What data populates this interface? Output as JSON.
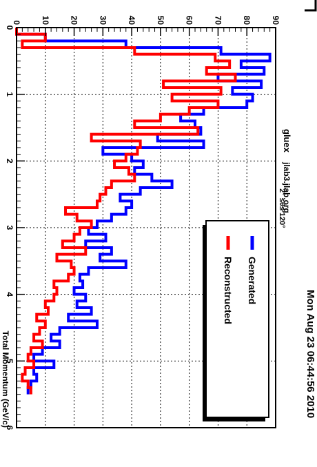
{
  "chart_data": {
    "type": "histogram",
    "title": "2° ≤θ≤ 120°",
    "xlabel": "Total Momentum (GeV/c)",
    "ylabel": "",
    "xlim": [
      0,
      6
    ],
    "ylim": [
      0,
      90
    ],
    "x_ticks": [
      "0",
      "1",
      "2",
      "3",
      "4",
      "5",
      "6"
    ],
    "y_ticks": [
      "0",
      "10",
      "20",
      "30",
      "40",
      "50",
      "60",
      "70",
      "80",
      "90"
    ],
    "grid": true,
    "bin_width": 0.1,
    "bin_edges_start": 0,
    "series": [
      {
        "name": "Generated",
        "color": "#0000ff",
        "values": [
          0,
          10,
          38,
          71,
          88,
          78,
          86,
          70,
          85,
          75,
          82,
          80,
          65,
          57,
          62,
          64,
          49,
          65,
          30,
          40,
          44,
          41,
          47,
          54,
          43,
          36,
          40,
          38,
          33,
          28,
          25,
          31,
          24,
          33,
          29,
          38,
          25,
          22,
          23,
          20,
          24,
          21,
          26,
          18,
          28,
          15,
          12,
          15,
          9,
          6,
          13,
          6,
          7,
          5,
          4
        ]
      },
      {
        "name": "Reconstructed",
        "color": "#ff0000",
        "values": [
          0,
          10,
          2,
          41,
          69,
          74,
          66,
          76,
          51,
          71,
          54,
          70,
          60,
          50,
          41,
          63,
          26,
          43,
          42,
          38,
          34,
          39,
          41,
          33,
          31,
          29,
          28,
          17,
          21,
          26,
          22,
          20,
          16,
          24,
          14,
          19,
          20,
          18,
          13,
          14,
          13,
          10,
          11,
          7,
          10,
          8,
          6,
          9,
          5,
          4,
          6,
          3,
          2,
          4,
          5
        ]
      }
    ],
    "legend": {
      "position": "top-right",
      "entries": [
        "Generated",
        "Reconstructed"
      ]
    }
  },
  "header": {
    "timestamp": "Mon Aug 23 06:44:56 2010",
    "experiment": "gluex",
    "host": "jlab3.jlab.org"
  }
}
